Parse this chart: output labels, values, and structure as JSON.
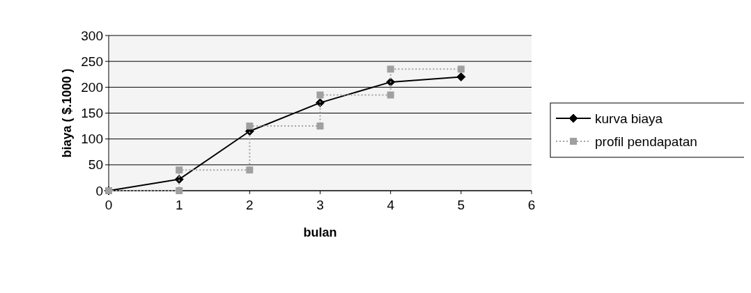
{
  "chart_data": {
    "type": "line",
    "xlabel": "bulan",
    "ylabel": "biaya ( $.1000 )",
    "xlim": [
      0,
      6
    ],
    "xticks": [
      0,
      1,
      2,
      3,
      4,
      5,
      6
    ],
    "ylim": [
      0,
      300
    ],
    "yticks": [
      0,
      50,
      100,
      150,
      200,
      250,
      300
    ],
    "grid": "y",
    "legend": "right",
    "series": [
      {
        "name": "kurva biaya",
        "color": "#000000",
        "marker": "diamond",
        "line_style": "solid",
        "x": [
          0,
          1,
          2,
          3,
          4,
          5
        ],
        "values": [
          0,
          22,
          115,
          170,
          210,
          220
        ]
      },
      {
        "name": "profil pendapatan",
        "color": "#a0a0a0",
        "marker": "square",
        "line_style": "dotted",
        "x": [
          0,
          1,
          1,
          2,
          2,
          3,
          3,
          4,
          4,
          5
        ],
        "values": [
          0,
          0,
          40,
          40,
          125,
          125,
          185,
          185,
          235,
          235
        ]
      }
    ]
  }
}
